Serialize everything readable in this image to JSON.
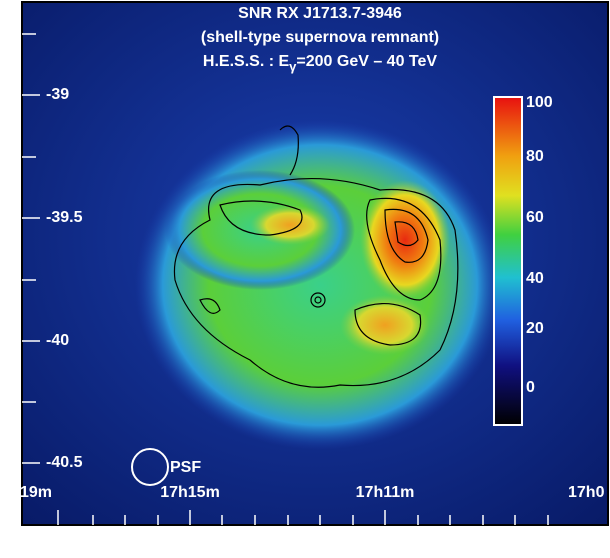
{
  "title": {
    "line1": "SNR RX J1713.7-3946",
    "line2": "(shell-type supernova remnant)",
    "line3": {
      "before": "H.E.S.S. : E",
      "subscript": "γ",
      "after": "=200 GeV – 40 TeV"
    }
  },
  "dec_labels": [
    "-39",
    "-39.5",
    "-40",
    "-40.5"
  ],
  "ra_labels": [
    "19m",
    "17h15m",
    "17h11m",
    "17h0"
  ],
  "colorbar_labels": [
    "100",
    "80",
    "60",
    "40",
    "20",
    "0"
  ],
  "psf_label": "PSF"
}
